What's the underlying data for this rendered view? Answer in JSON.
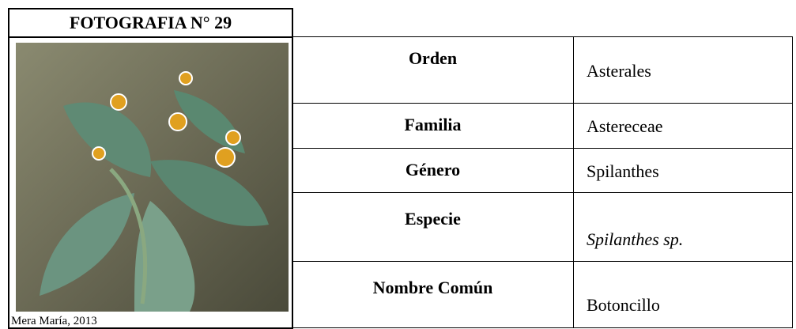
{
  "header": {
    "title": "FOTOGRAFIA N° 29"
  },
  "photo": {
    "caption": "Mera María, 2013"
  },
  "table": {
    "rows": [
      {
        "label": "Orden",
        "value": "Asterales"
      },
      {
        "label": "Familia",
        "value": "Astereceae"
      },
      {
        "label": "Género",
        "value": "Spilanthes"
      },
      {
        "label": "Especie",
        "value": "Spilanthes sp."
      },
      {
        "label": "Nombre Común",
        "value": "Botoncillo"
      }
    ]
  }
}
